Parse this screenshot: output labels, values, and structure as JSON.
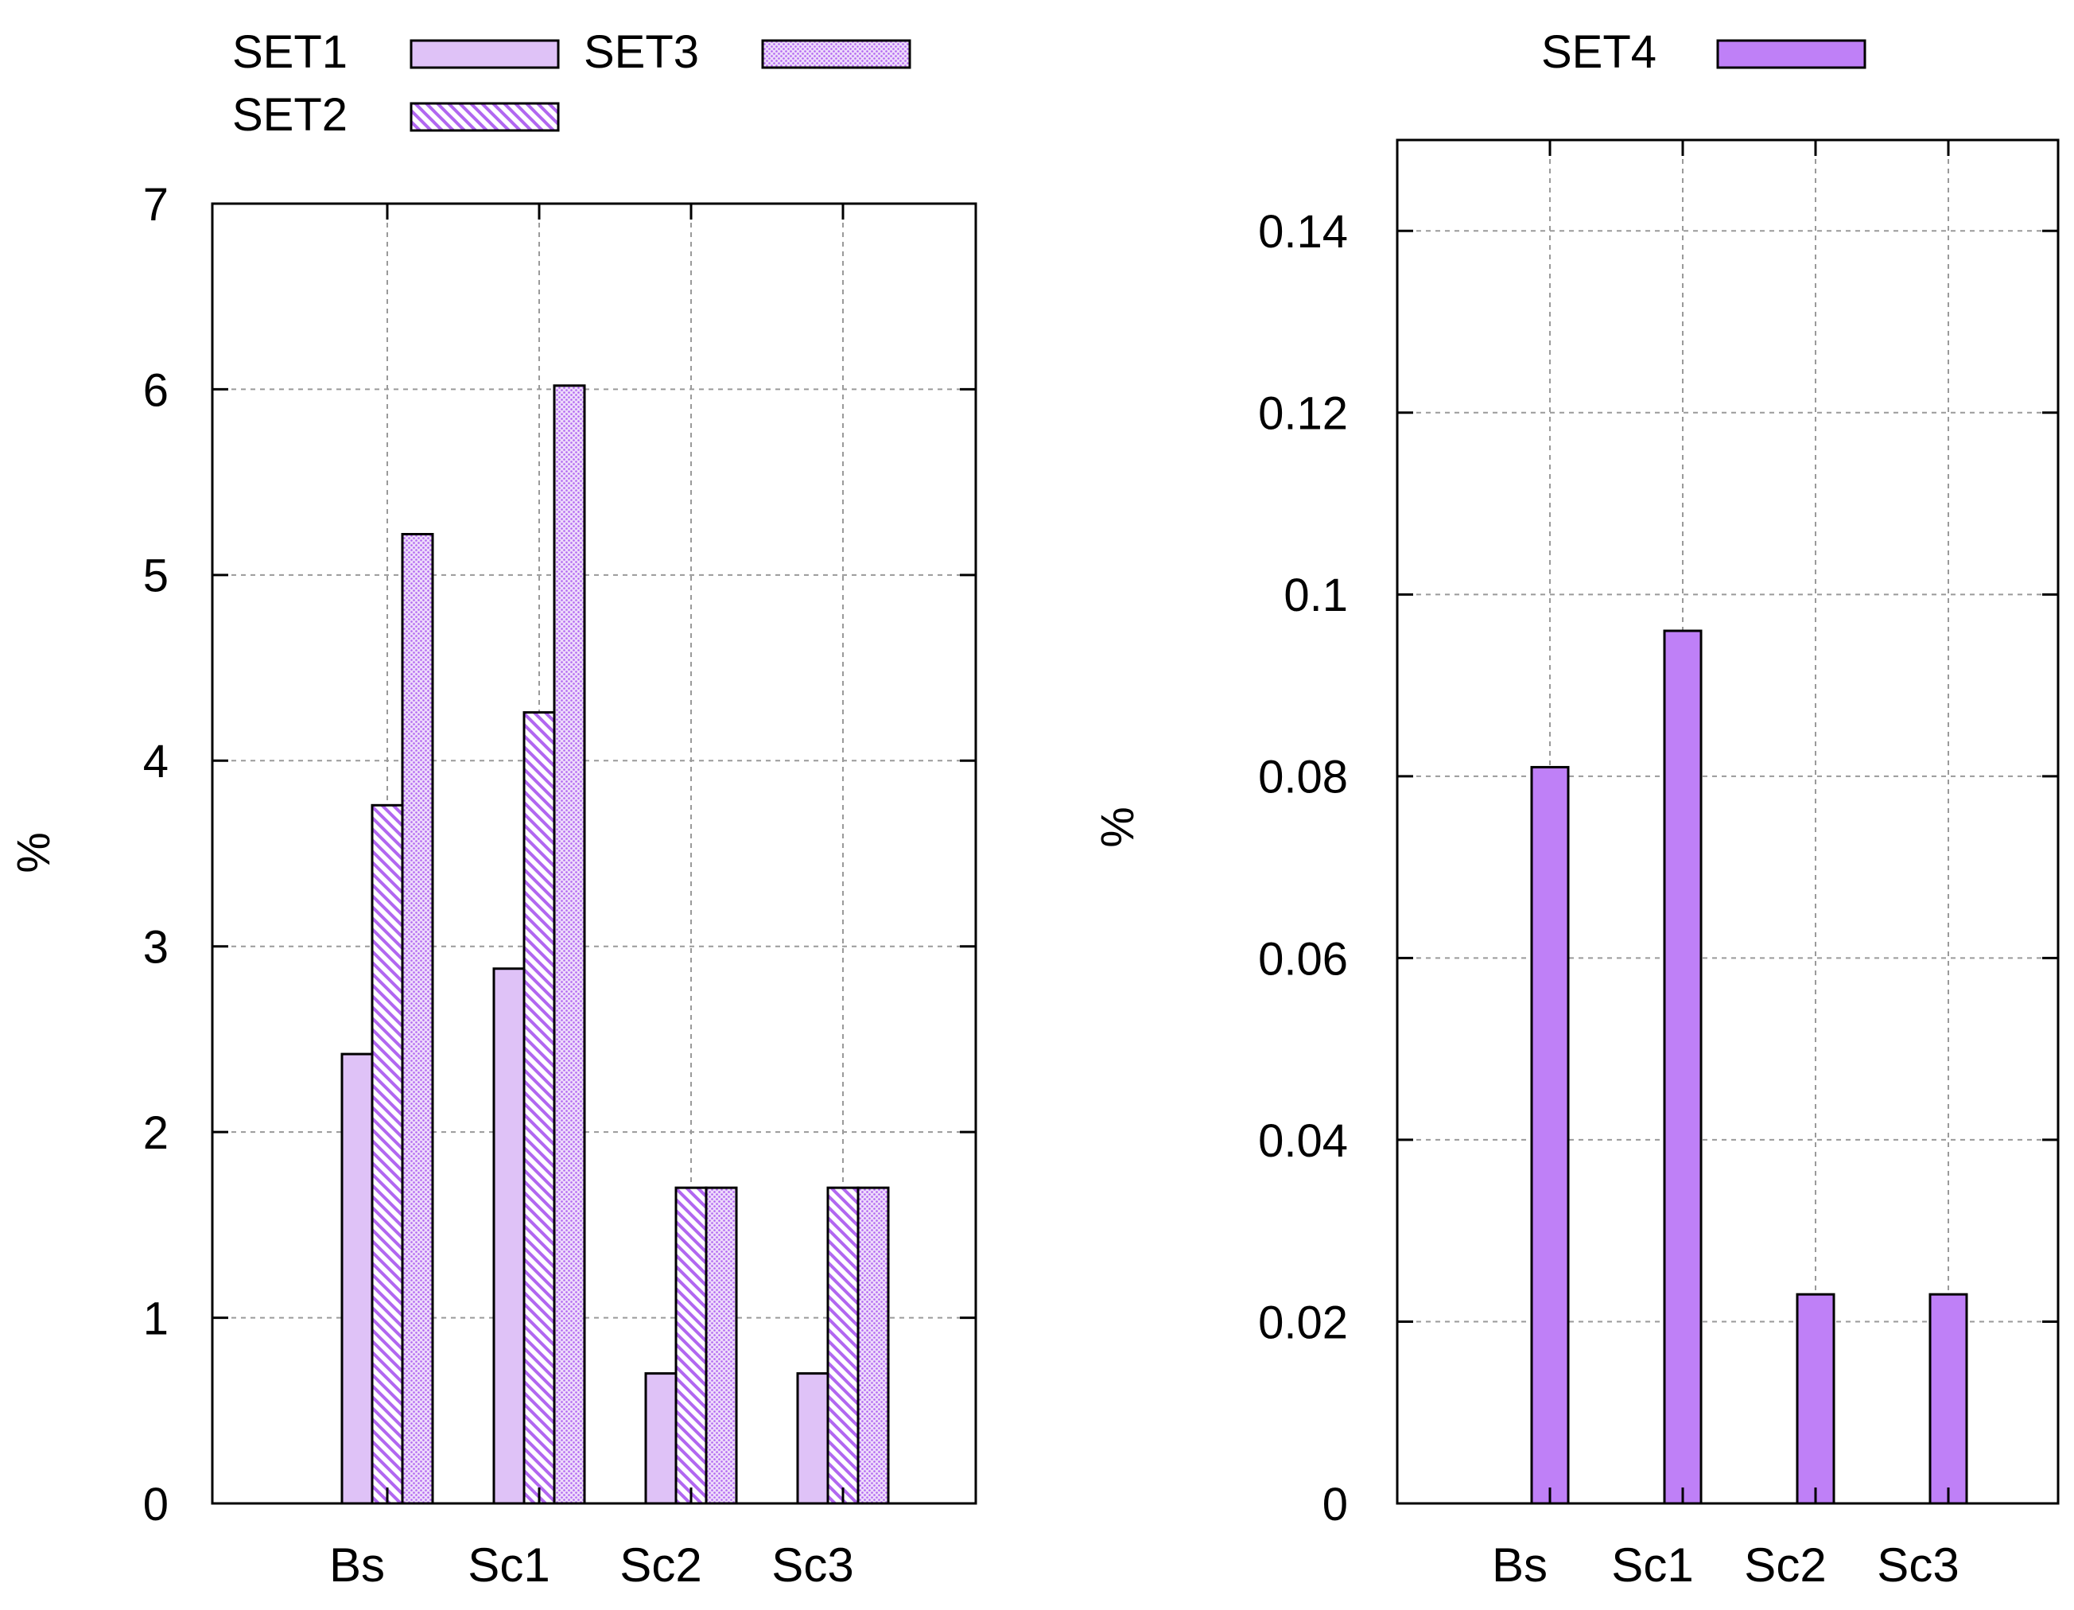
{
  "colors": {
    "bar_fill": "#dfc2f7",
    "bar_fill_solid": "#bf80f7",
    "hatch_stroke": "#b167f0",
    "outline": "#000000",
    "grid": "#9a9a9a"
  },
  "chart_data": [
    {
      "type": "bar",
      "categories": [
        "Bs",
        "Sc1",
        "Sc2",
        "Sc3"
      ],
      "series": [
        {
          "name": "SET1",
          "values": [
            2.42,
            2.88,
            0.7,
            0.7
          ],
          "pattern": "solid-light"
        },
        {
          "name": "SET2",
          "values": [
            3.76,
            4.26,
            1.7,
            1.7
          ],
          "pattern": "diagonal-hatch"
        },
        {
          "name": "SET3",
          "values": [
            5.22,
            6.02,
            1.7,
            1.7
          ],
          "pattern": "crosshatch"
        }
      ],
      "ylabel": "%",
      "ylim": [
        0,
        7
      ],
      "yticks": [
        "0",
        "1",
        "2",
        "3",
        "4",
        "5",
        "6",
        "7"
      ],
      "grid": true,
      "legend_position": "top-left, outside plot"
    },
    {
      "type": "bar",
      "categories": [
        "Bs",
        "Sc1",
        "Sc2",
        "Sc3"
      ],
      "series": [
        {
          "name": "SET4",
          "values": [
            0.081,
            0.096,
            0.023,
            0.023
          ],
          "pattern": "solid"
        }
      ],
      "ylabel": "%",
      "ylim": [
        0,
        0.15
      ],
      "yticks": [
        "0",
        "0.02",
        "0.04",
        "0.06",
        "0.08",
        "0.1",
        "0.12",
        "0.14"
      ],
      "grid": true,
      "legend_position": "top-center, outside plot"
    }
  ]
}
